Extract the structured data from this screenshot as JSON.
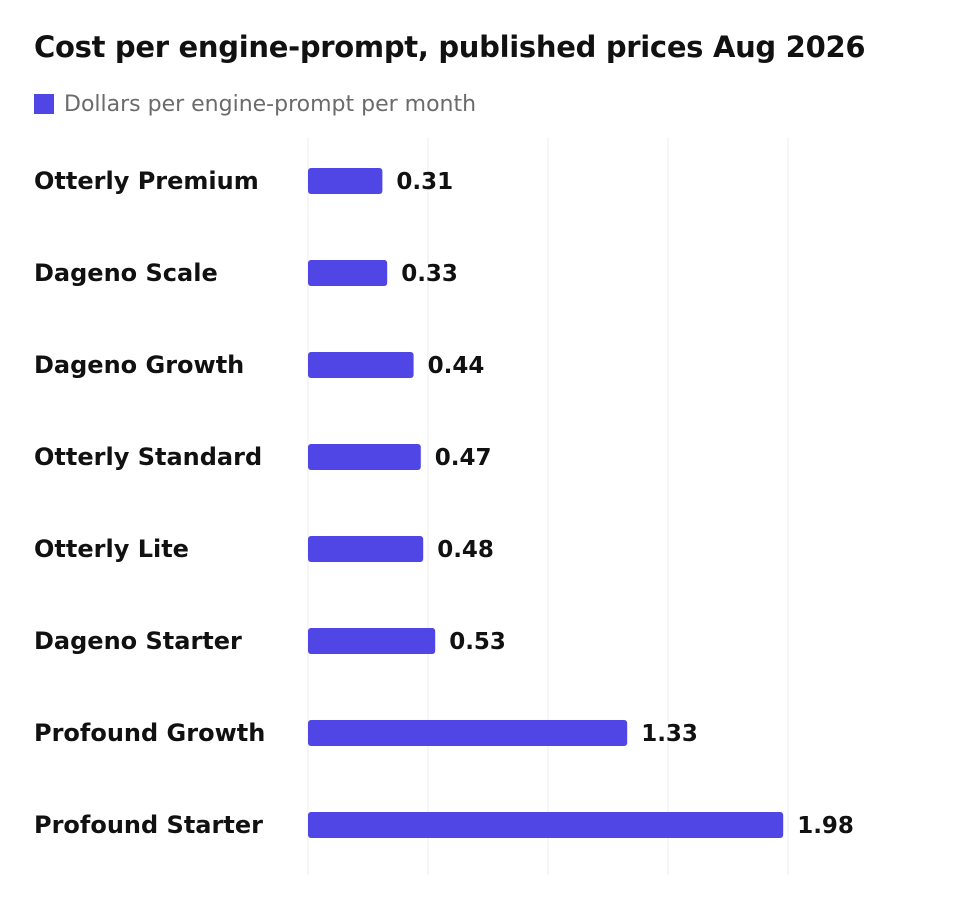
{
  "chart_data": {
    "type": "bar",
    "orientation": "horizontal",
    "title": "Cost per engine-prompt, published prices Aug 2026",
    "categories": [
      "Otterly Premium",
      "Dageno Scale",
      "Dageno Growth",
      "Otterly Standard",
      "Otterly Lite",
      "Dageno Starter",
      "Profound Growth",
      "Profound Starter"
    ],
    "series": [
      {
        "name": "Dollars per engine-prompt per month",
        "values": [
          0.31,
          0.33,
          0.44,
          0.47,
          0.48,
          0.53,
          1.33,
          1.98
        ],
        "color": "#4f46e5"
      }
    ],
    "xlim": [
      0,
      2.25
    ],
    "grid": true,
    "legend": "top-left"
  },
  "colors": {
    "bar": "#4f46e5",
    "grid": "#ececec",
    "text": "#111111",
    "legend_text": "#6b6b6b"
  }
}
